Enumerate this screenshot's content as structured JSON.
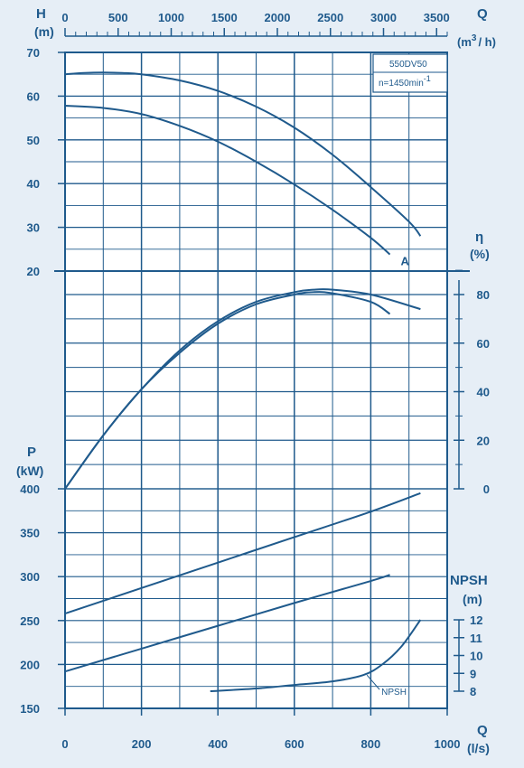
{
  "chart_data": {
    "type": "line",
    "model": "550DV50",
    "speed_prefix": "n=1450min",
    "speed_sup": "-1",
    "flow_lps": {
      "label": "Q",
      "unit": "(l/s)",
      "range": [
        0,
        1000
      ],
      "ticks": [
        "0",
        "200",
        "400",
        "600",
        "800",
        "1000"
      ]
    },
    "flow_m3h": {
      "label": "Q",
      "unit_pre": "(m",
      "unit_sup": "3",
      "unit_post": "/ h)",
      "range": [
        0,
        3600
      ],
      "ticks": [
        "0",
        "500",
        "1000",
        "1500",
        "2000",
        "2500",
        "3000",
        "3500"
      ]
    },
    "head": {
      "label": "H",
      "unit": "(m)",
      "range": [
        20,
        70
      ],
      "ticks": [
        "70",
        "60",
        "50",
        "40",
        "30",
        "20"
      ]
    },
    "efficiency": {
      "label": "η",
      "unit": "(%)",
      "range": [
        0,
        90
      ],
      "ticks": [
        "80",
        "60",
        "40",
        "20",
        "0"
      ]
    },
    "power": {
      "label": "P",
      "unit": "(kW)",
      "range": [
        150,
        400
      ],
      "ticks": [
        "400",
        "350",
        "300",
        "250",
        "200",
        "150"
      ]
    },
    "npsh": {
      "label": "NPSH",
      "unit": "(m)",
      "range": [
        8,
        12
      ],
      "ticks": [
        "12",
        "11",
        "10",
        "9",
        "8"
      ]
    },
    "series": [
      {
        "name": "",
        "panel": "head",
        "x": [
          0,
          50,
          100,
          150,
          200,
          300,
          400,
          500,
          600,
          700,
          800,
          900,
          930
        ],
        "y": [
          65.0,
          65.3,
          65.4,
          65.3,
          65.0,
          63.6,
          61.2,
          57.6,
          52.8,
          46.6,
          39.2,
          31.3,
          28.0
        ]
      },
      {
        "name": "A",
        "panel": "head",
        "x": [
          0,
          100,
          200,
          300,
          400,
          500,
          600,
          700,
          800,
          850
        ],
        "y": [
          57.8,
          57.3,
          55.9,
          53.2,
          49.6,
          45.0,
          39.8,
          34.0,
          27.6,
          23.8
        ]
      },
      {
        "name": "",
        "panel": "efficiency",
        "x": [
          0,
          100,
          200,
          300,
          400,
          500,
          600,
          650,
          700,
          800,
          930
        ],
        "y": [
          0,
          22,
          41,
          57,
          69,
          77,
          81,
          82,
          82,
          80,
          74
        ]
      },
      {
        "name": "",
        "panel": "efficiency",
        "x": [
          0,
          100,
          200,
          300,
          400,
          500,
          600,
          650,
          700,
          800,
          850
        ],
        "y": [
          0,
          22,
          41,
          56,
          68,
          76,
          80,
          81,
          80.5,
          77,
          72
        ]
      },
      {
        "name": "",
        "panel": "power",
        "x": [
          0,
          200,
          400,
          600,
          800,
          930
        ],
        "y": [
          258,
          287,
          316,
          345,
          374,
          395
        ]
      },
      {
        "name": "",
        "panel": "power",
        "x": [
          0,
          200,
          400,
          600,
          800,
          850
        ],
        "y": [
          192,
          218,
          244,
          270,
          295,
          302
        ]
      },
      {
        "name": "NPSH",
        "panel": "npsh",
        "x": [
          380,
          500,
          600,
          700,
          780,
          830,
          880,
          930
        ],
        "y": [
          8.0,
          8.15,
          8.35,
          8.55,
          8.9,
          9.5,
          10.5,
          12.0
        ]
      }
    ]
  }
}
